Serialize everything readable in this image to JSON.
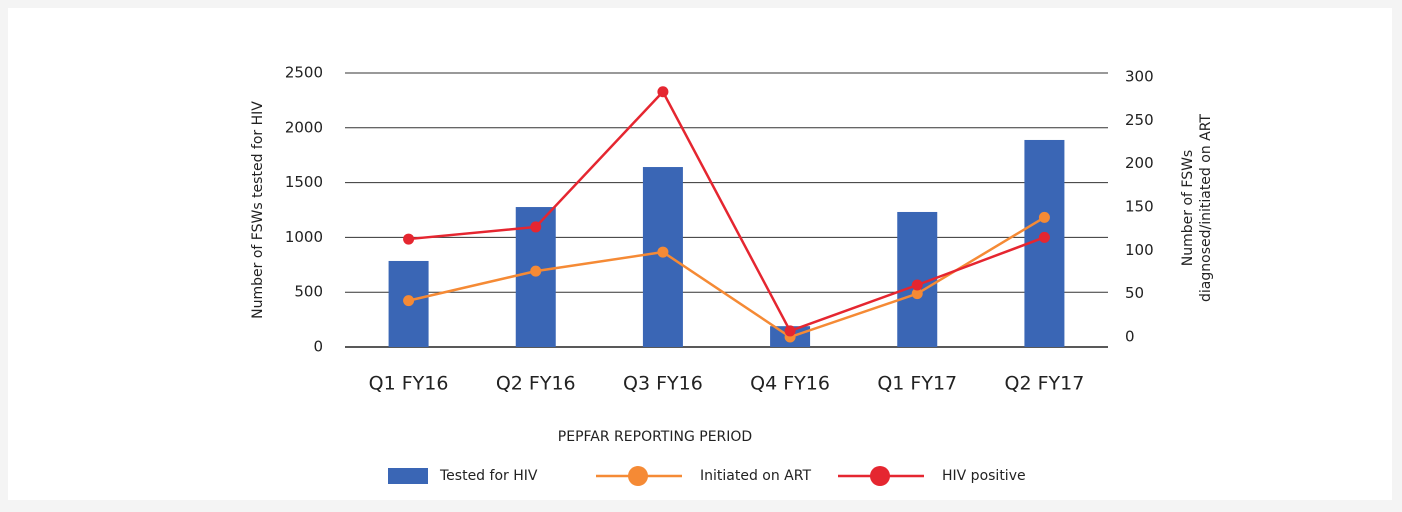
{
  "chart_data": {
    "type": "bar",
    "xlabel": "PEPFAR REPORTING PERIOD",
    "ylabel": "Number of FSWs tested for HIV",
    "y2label": [
      "Number of FSWs",
      "diagnosed/initiated on ART"
    ],
    "categories": [
      "Q1 FY16",
      "Q2 FY16",
      "Q3 FY16",
      "Q4 FY16",
      "Q1 FY17",
      "Q2 FY17"
    ],
    "ylim": [
      0,
      2500
    ],
    "yticks": [
      0,
      500,
      1000,
      1500,
      2000,
      2500
    ],
    "y2lim": [
      0,
      300
    ],
    "y2ticks": [
      0,
      50,
      100,
      150,
      200,
      250,
      300
    ],
    "grid": true,
    "legend": "bottom",
    "series": [
      {
        "name": "Tested for HIV",
        "type": "bar",
        "axis": "y",
        "color": "#3a66b5",
        "values": [
          785,
          1277,
          1642,
          190,
          1232,
          1889
        ]
      },
      {
        "name": "Initiated on ART",
        "type": "line",
        "axis": "y2",
        "color": "#f58a35",
        "values": [
          42,
          76,
          98,
          0,
          50,
          138
        ]
      },
      {
        "name": "HIV positive",
        "type": "line",
        "axis": "y2",
        "color": "#e52630",
        "values": [
          113,
          127,
          283,
          7,
          60,
          115
        ]
      }
    ]
  }
}
